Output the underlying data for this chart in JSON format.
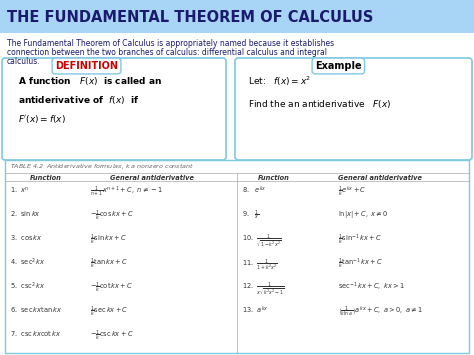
{
  "title": "THE FUNDAMENTAL THEOREM OF CALCULUS",
  "title_bg": "#a8d4f5",
  "intro_text1": "The Fundamental Theorem of Calculus is appropriately named because it establishes",
  "intro_text2": "connection between the two branches of calculus: differential calculus and integral",
  "intro_text3": "calculus.",
  "def_label": "DEFINITION",
  "def_label_color": "#cc0000",
  "def_box_border": "#7ec8e3",
  "def_text1": "A function   $F(x)$  is called an",
  "def_text2": "antiderivative of  $f(x)$  if",
  "def_text3": "$F^{\\prime}(x) = f(x)$",
  "ex_label": "Example",
  "ex_box_border": "#7ec8e3",
  "ex_text1": "Let:   $f(x) = x^2$",
  "ex_text2": "Find the an antiderivative   $F(x)$",
  "table_title": "TABLE 4.2  Antiderivative formulas, $k$ a nonzero constant",
  "table_border": "#7ec8e3",
  "col1_header": "Function",
  "col2_header": "General antiderivative",
  "col3_header": "Function",
  "col4_header": "General antiderivative",
  "rows_left": [
    [
      "1.  $x^n$",
      "$\\frac{1}{n+1}x^{n+1} + C,\\ n\\neq -1$"
    ],
    [
      "2.  $\\sin kx$",
      "$-\\frac{1}{k}\\cos kx + C$"
    ],
    [
      "3.  $\\cos kx$",
      "$\\frac{1}{k}\\sin kx + C$"
    ],
    [
      "4.  $\\sec^2 kx$",
      "$\\frac{1}{k}\\tan kx + C$"
    ],
    [
      "5.  $\\csc^2 kx$",
      "$-\\frac{1}{k}\\cot kx + C$"
    ],
    [
      "6.  $\\sec kx\\tan kx$",
      "$\\frac{1}{k}\\sec kx + C$"
    ],
    [
      "7.  $\\csc kx\\cot kx$",
      "$-\\frac{1}{k}\\csc kx + C$"
    ]
  ],
  "rows_right": [
    [
      "8.   $e^{kx}$",
      "$\\frac{1}{k}e^{kx} + C$"
    ],
    [
      "9.   $\\frac{1}{x}$",
      "$\\ln|x| + C,\\ x\\neq 0$"
    ],
    [
      "10.  $\\frac{1}{\\sqrt{1-k^2x^2}}$",
      "$\\frac{1}{k}\\sin^{-1} kx + C$"
    ],
    [
      "11.  $\\frac{1}{1+k^2x^2}$",
      "$\\frac{1}{k}\\tan^{-1} kx + C$"
    ],
    [
      "12.  $\\frac{1}{x\\sqrt{k^2x^2-1}}$",
      "$\\sec^{-1} kx + C,\\ kx>1$"
    ],
    [
      "13.  $a^{kx}$",
      "$\\left(\\frac{1}{k\\ln a}\\right)a^{kx} + C,\\ a>0,\\ a\\neq 1$"
    ]
  ],
  "bg_color": "#ffffff",
  "text_color": "#1a1a6e",
  "table_text_color": "#333333"
}
